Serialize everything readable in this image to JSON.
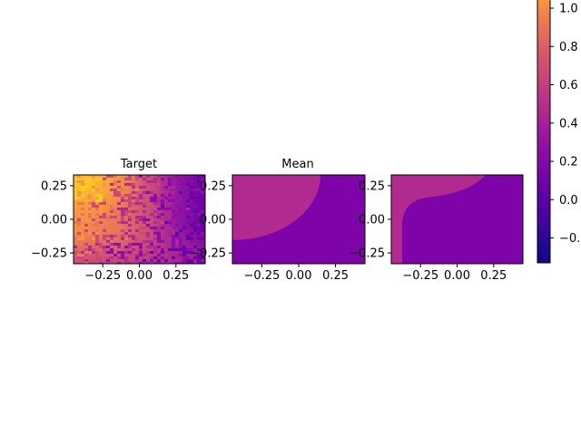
{
  "chart_data": [
    {
      "type": "heatmap",
      "title": "Target",
      "xlabel": "",
      "ylabel": "",
      "xlim": [
        -0.45,
        0.45
      ],
      "ylim": [
        -0.33,
        0.33
      ],
      "xticks": [
        -0.25,
        0.0,
        0.25
      ],
      "xtick_labels": [
        "−0.25",
        "0.00",
        "0.25"
      ],
      "yticks": [
        0.25,
        0.0,
        -0.25
      ],
      "ytick_labels": [
        "0.25",
        "0.00",
        "−0.25"
      ],
      "colormap": "plasma",
      "description_of_values": [
        {
          "region": "top-left",
          "value": 1.0
        },
        {
          "region": "left-center",
          "value": 0.75
        },
        {
          "region": "bottom-left",
          "value": 0.5
        },
        {
          "region": "center",
          "value": 0.55
        },
        {
          "region": "right",
          "value": 0.15
        }
      ]
    },
    {
      "type": "heatmap",
      "title": "Mean",
      "xlabel": "",
      "ylabel": "",
      "xlim": [
        -0.45,
        0.45
      ],
      "ylim": [
        -0.33,
        0.33
      ],
      "xticks": [
        -0.25,
        0.0,
        0.25
      ],
      "xtick_labels": [
        "−0.25",
        "0.00",
        "0.25"
      ],
      "yticks": [
        0.25,
        0.0,
        -0.25
      ],
      "ytick_labels": [
        "0.25",
        "0.00",
        "−0.25"
      ],
      "colormap": "plasma",
      "regions": [
        {
          "name": "circular region centered top-left",
          "center": [
            -0.45,
            0.33
          ],
          "radius": 0.5,
          "value": 0.38
        },
        {
          "name": "background",
          "value": 0.15
        }
      ]
    },
    {
      "type": "heatmap",
      "title": "",
      "xlabel": "",
      "ylabel": "",
      "xlim": [
        -0.45,
        0.45
      ],
      "ylim": [
        -0.33,
        0.33
      ],
      "xticks": [
        -0.25,
        0.0,
        0.25
      ],
      "xtick_labels": [
        "−0.25",
        "0.00",
        "0.25"
      ],
      "yticks": [
        0.25,
        0.0,
        -0.25
      ],
      "ytick_labels": [
        "0.25",
        "0.00",
        "−0.25"
      ],
      "colormap": "plasma",
      "regions": [
        {
          "name": "top band and left strip",
          "value": 0.38
        },
        {
          "name": "background",
          "value": 0.15
        }
      ]
    }
  ],
  "colorbar": {
    "colormap": "plasma",
    "vmin": -0.33,
    "vmax": 1.09,
    "ticks": [
      1.0,
      0.8,
      0.6,
      0.4,
      0.2,
      0.0,
      -0.2
    ],
    "tick_labels": [
      "1.0",
      "0.8",
      "0.6",
      "0.4",
      "0.2",
      "0.0",
      "−0.2"
    ]
  }
}
